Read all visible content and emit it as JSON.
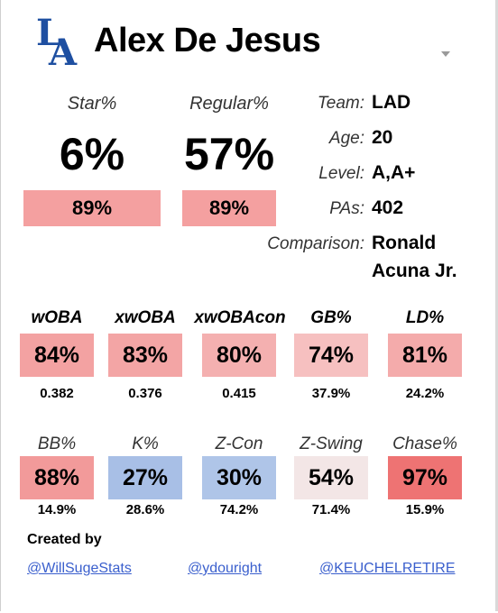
{
  "header": {
    "player_name": "Alex De Jesus",
    "team_logo": "la-dodgers-logo"
  },
  "projection": {
    "star_label": "Star%",
    "star_value": "6%",
    "star_pct": "89%",
    "regular_label": "Regular%",
    "regular_value": "57%",
    "regular_pct": "89%"
  },
  "info": {
    "team_label": "Team:",
    "team_value": "LAD",
    "age_label": "Age:",
    "age_value": "20",
    "level_label": "Level:",
    "level_value": "A,A+",
    "pas_label": "PAs:",
    "pas_value": "402",
    "comparison_label": "Comparison:",
    "comparison_line1": "Ronald",
    "comparison_line2": "Acuna Jr."
  },
  "stats_row1": [
    {
      "label": "wOBA",
      "pct": "84%",
      "raw": "0.382",
      "color": "#f3a2a2"
    },
    {
      "label": "xwOBA",
      "pct": "83%",
      "raw": "0.376",
      "color": "#f3a5a5"
    },
    {
      "label": "xwOBAcon",
      "pct": "80%",
      "raw": "0.415",
      "color": "#f4b0b0"
    },
    {
      "label": "GB%",
      "pct": "74%",
      "raw": "37.9%",
      "color": "#f6c0c0"
    },
    {
      "label": "LD%",
      "pct": "81%",
      "raw": "24.2%",
      "color": "#f4abab"
    }
  ],
  "stats_row2": [
    {
      "label": "BB%",
      "pct": "88%",
      "raw": "14.9%",
      "color": "#f29a9a"
    },
    {
      "label": "K%",
      "pct": "27%",
      "raw": "28.6%",
      "color": "#a8bfe6"
    },
    {
      "label": "Z-Con",
      "pct": "30%",
      "raw": "74.2%",
      "color": "#afc5e8"
    },
    {
      "label": "Z-Swing",
      "pct": "54%",
      "raw": "71.4%",
      "color": "#f3e6e6"
    },
    {
      "label": "Chase%",
      "pct": "97%",
      "raw": "15.9%",
      "color": "#ee7373"
    }
  ],
  "credits": {
    "label": "Created by",
    "links": [
      "@WillSugeStats",
      "@ydouright",
      "@KEUCHELRETIRE"
    ]
  },
  "colors": {
    "projection_box": "#f4a0a0",
    "link": "#3a5fcd"
  }
}
